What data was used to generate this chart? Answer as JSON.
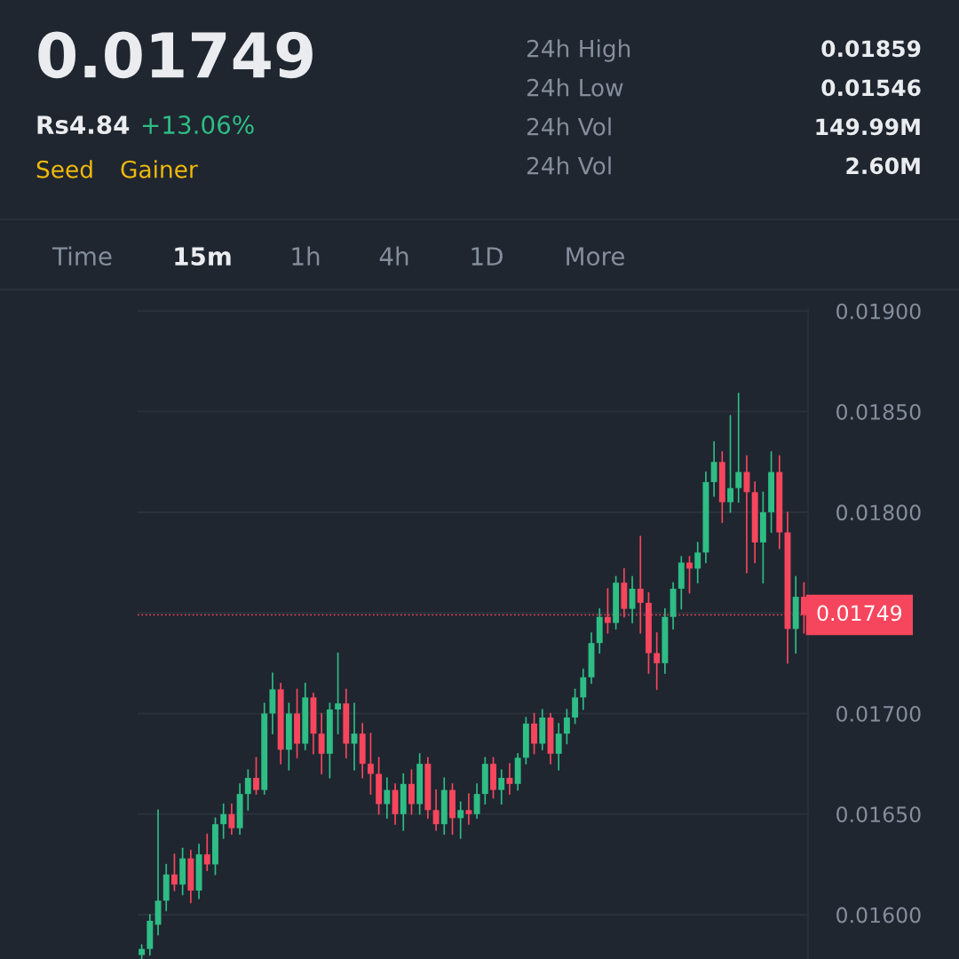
{
  "chart_data": {
    "type": "candlestick",
    "title": "0.01749",
    "subtitle": "Rs4.84",
    "annotations": [
      "Seed",
      "Gainer",
      "+13.06%",
      "24h High",
      "0.01859",
      "24h Low",
      "0.01546",
      "24h Vol",
      "149.99M",
      "24h Vol",
      "2.60M",
      "Time",
      "15m",
      "1h",
      "4h",
      "1D",
      "More"
    ],
    "categories": [
      null,
      null,
      null,
      null,
      null,
      null,
      null,
      null,
      null,
      null,
      null,
      null,
      null,
      null,
      null,
      null,
      null,
      null,
      null,
      null,
      null,
      null,
      null,
      null,
      null,
      null,
      null,
      null,
      null,
      null,
      null,
      null,
      null,
      null,
      null,
      null,
      null,
      null,
      null,
      null,
      null,
      null,
      null,
      null,
      null,
      null,
      null,
      null,
      null,
      null,
      null,
      null,
      null,
      null,
      null,
      null,
      null,
      null,
      null,
      null,
      null,
      null,
      null,
      null,
      null,
      null,
      null,
      null,
      null,
      null,
      null,
      null,
      null,
      null,
      null,
      null,
      null,
      null,
      null,
      null,
      null,
      null
    ],
    "colors": [
      "#2ebd85",
      "#2ebd85",
      "#2ebd85",
      "#2ebd85",
      "#f6465d",
      "#2ebd85",
      "#f6465d",
      "#2ebd85",
      "#f6465d",
      "#2ebd85",
      "#2ebd85",
      "#f6465d",
      "#2ebd85",
      "#2ebd85",
      "#f6465d",
      "#2ebd85",
      "#2ebd85",
      "#f6465d",
      "#2ebd85",
      "#f6465d",
      "#2ebd85",
      "#f6465d",
      "#f6465d",
      "#2ebd85",
      "#2ebd85",
      "#f6465d",
      "#2ebd85",
      "#f6465d",
      "#f6465d",
      "#f6465d",
      "#2ebd85",
      "#f6465d",
      "#2ebd85",
      "#f6465d",
      "#2ebd85",
      "#f6465d",
      "#f6465d",
      "#2ebd85",
      "#f6465d",
      "#2ebd85",
      "#f6465d",
      "#2ebd85",
      "#2ebd85",
      "#f6465d",
      "#2ebd85",
      "#f6465d",
      "#2ebd85",
      "#2ebd85",
      "#f6465d",
      "#2ebd85",
      "#f6465d",
      "#2ebd85",
      "#2ebd85",
      "#2ebd85",
      "#2ebd85",
      "#2ebd85",
      "#2ebd85",
      "#f6465d",
      "#2ebd85",
      "#f6465d",
      "#2ebd85",
      "#f6465d",
      "#f6465d",
      "#f6465d",
      "#2ebd85",
      "#2ebd85",
      "#2ebd85",
      "#f6465d",
      "#2ebd85",
      "#2ebd85",
      "#2ebd85",
      "#f6465d",
      "#2ebd85",
      "#2ebd85",
      "#f6465d",
      "#f6465d",
      "#2ebd85",
      "#2ebd85",
      "#f6465d",
      "#f6465d",
      "#2ebd85",
      "#f6465d"
    ],
    "ohlc": [
      [
        0.0158,
        0.01585,
        0.01578,
        0.01583
      ],
      [
        0.01583,
        0.016,
        0.0158,
        0.01597
      ],
      [
        0.01595,
        0.01652,
        0.0159,
        0.01607
      ],
      [
        0.01607,
        0.01625,
        0.01602,
        0.0162
      ],
      [
        0.0162,
        0.0163,
        0.01612,
        0.01615
      ],
      [
        0.01615,
        0.01633,
        0.0161,
        0.01628
      ],
      [
        0.01628,
        0.01632,
        0.01606,
        0.01612
      ],
      [
        0.01612,
        0.01635,
        0.01608,
        0.0163
      ],
      [
        0.0163,
        0.0164,
        0.01622,
        0.01625
      ],
      [
        0.01625,
        0.01648,
        0.0162,
        0.01645
      ],
      [
        0.01645,
        0.01655,
        0.01638,
        0.0165
      ],
      [
        0.0165,
        0.01655,
        0.0164,
        0.01643
      ],
      [
        0.01643,
        0.01665,
        0.0164,
        0.0166
      ],
      [
        0.0166,
        0.01672,
        0.01652,
        0.01668
      ],
      [
        0.01668,
        0.01678,
        0.0166,
        0.01662
      ],
      [
        0.01662,
        0.01705,
        0.0166,
        0.017
      ],
      [
        0.017,
        0.0172,
        0.0169,
        0.01712
      ],
      [
        0.01712,
        0.01715,
        0.01675,
        0.01682
      ],
      [
        0.01682,
        0.01705,
        0.01672,
        0.017
      ],
      [
        0.017,
        0.01712,
        0.01678,
        0.01685
      ],
      [
        0.01685,
        0.01715,
        0.01682,
        0.01708
      ],
      [
        0.01708,
        0.0171,
        0.0168,
        0.0169
      ],
      [
        0.0169,
        0.017,
        0.0167,
        0.0168
      ],
      [
        0.0168,
        0.01705,
        0.01668,
        0.01702
      ],
      [
        0.01702,
        0.0173,
        0.0169,
        0.01705
      ],
      [
        0.01705,
        0.01712,
        0.01678,
        0.01685
      ],
      [
        0.01685,
        0.01705,
        0.01672,
        0.0169
      ],
      [
        0.0169,
        0.01695,
        0.01668,
        0.01675
      ],
      [
        0.01675,
        0.0169,
        0.0166,
        0.0167
      ],
      [
        0.0167,
        0.01678,
        0.0165,
        0.01655
      ],
      [
        0.01655,
        0.01668,
        0.01648,
        0.01662
      ],
      [
        0.01662,
        0.01665,
        0.01645,
        0.0165
      ],
      [
        0.0165,
        0.0167,
        0.01642,
        0.01665
      ],
      [
        0.01665,
        0.01672,
        0.0165,
        0.01655
      ],
      [
        0.01655,
        0.0168,
        0.0165,
        0.01675
      ],
      [
        0.01675,
        0.01678,
        0.01648,
        0.01652
      ],
      [
        0.01652,
        0.01662,
        0.01642,
        0.01645
      ],
      [
        0.01645,
        0.01668,
        0.0164,
        0.01662
      ],
      [
        0.01662,
        0.01665,
        0.0164,
        0.01648
      ],
      [
        0.01648,
        0.01656,
        0.01638,
        0.01652
      ],
      [
        0.01652,
        0.0166,
        0.01645,
        0.0165
      ],
      [
        0.0165,
        0.01665,
        0.01648,
        0.0166
      ],
      [
        0.0166,
        0.01678,
        0.01655,
        0.01675
      ],
      [
        0.01675,
        0.01678,
        0.01658,
        0.01662
      ],
      [
        0.01662,
        0.01672,
        0.01655,
        0.01668
      ],
      [
        0.01668,
        0.01675,
        0.0166,
        0.01665
      ],
      [
        0.01665,
        0.0168,
        0.01662,
        0.01678
      ],
      [
        0.01678,
        0.01698,
        0.01675,
        0.01695
      ],
      [
        0.01695,
        0.017,
        0.0168,
        0.01685
      ],
      [
        0.01685,
        0.01702,
        0.01682,
        0.01698
      ],
      [
        0.01698,
        0.017,
        0.01675,
        0.0168
      ],
      [
        0.0168,
        0.01695,
        0.01672,
        0.0169
      ],
      [
        0.0169,
        0.01702,
        0.01685,
        0.01698
      ],
      [
        0.01698,
        0.01712,
        0.01695,
        0.01708
      ],
      [
        0.01708,
        0.01722,
        0.01702,
        0.01718
      ],
      [
        0.01718,
        0.0174,
        0.01715,
        0.01735
      ],
      [
        0.01735,
        0.01752,
        0.0173,
        0.01748
      ],
      [
        0.01748,
        0.01762,
        0.0174,
        0.01745
      ],
      [
        0.01745,
        0.01768,
        0.01742,
        0.01765
      ],
      [
        0.01765,
        0.01772,
        0.01748,
        0.01752
      ],
      [
        0.01752,
        0.01768,
        0.01745,
        0.01762
      ],
      [
        0.01762,
        0.01788,
        0.0174,
        0.01755
      ],
      [
        0.01755,
        0.0176,
        0.0172,
        0.0173
      ],
      [
        0.0173,
        0.0174,
        0.01712,
        0.01725
      ],
      [
        0.01725,
        0.01752,
        0.0172,
        0.01748
      ],
      [
        0.01748,
        0.01765,
        0.01742,
        0.01762
      ],
      [
        0.01762,
        0.01778,
        0.01752,
        0.01775
      ],
      [
        0.01775,
        0.01778,
        0.0176,
        0.01772
      ],
      [
        0.01772,
        0.01785,
        0.01765,
        0.0178
      ],
      [
        0.0178,
        0.0182,
        0.01775,
        0.01815
      ],
      [
        0.01815,
        0.01835,
        0.01808,
        0.01825
      ],
      [
        0.01825,
        0.0183,
        0.01795,
        0.01805
      ],
      [
        0.01805,
        0.01848,
        0.018,
        0.01812
      ],
      [
        0.01812,
        0.01859,
        0.01805,
        0.0182
      ],
      [
        0.0182,
        0.01828,
        0.0177,
        0.0181
      ],
      [
        0.0181,
        0.01815,
        0.01775,
        0.01785
      ],
      [
        0.01785,
        0.0181,
        0.01765,
        0.018
      ],
      [
        0.018,
        0.0183,
        0.0179,
        0.0182
      ],
      [
        0.0182,
        0.01828,
        0.01782,
        0.0179
      ],
      [
        0.0179,
        0.018,
        0.01725,
        0.01742
      ],
      [
        0.01742,
        0.01768,
        0.0173,
        0.01758
      ],
      [
        0.01758,
        0.01765,
        0.0174,
        0.01749
      ]
    ],
    "ylim": [
      0.01578,
      0.01901
    ],
    "yticks": [
      {
        "value": 0.016,
        "label": "0.01600"
      },
      {
        "value": 0.0165,
        "label": "0.01650"
      },
      {
        "value": 0.017,
        "label": "0.01700"
      },
      {
        "value": 0.0175,
        "label": null
      },
      {
        "value": 0.018,
        "label": "0.01800"
      },
      {
        "value": 0.0185,
        "label": "0.01850"
      },
      {
        "value": 0.019,
        "label": "0.01900"
      }
    ],
    "ref_lines": [
      {
        "axis": "y",
        "value": 0.01749,
        "label": "0.01749",
        "color": "#f6465d",
        "line_style": "dotted"
      }
    ],
    "grid": "y",
    "tick_labels": "y"
  }
}
